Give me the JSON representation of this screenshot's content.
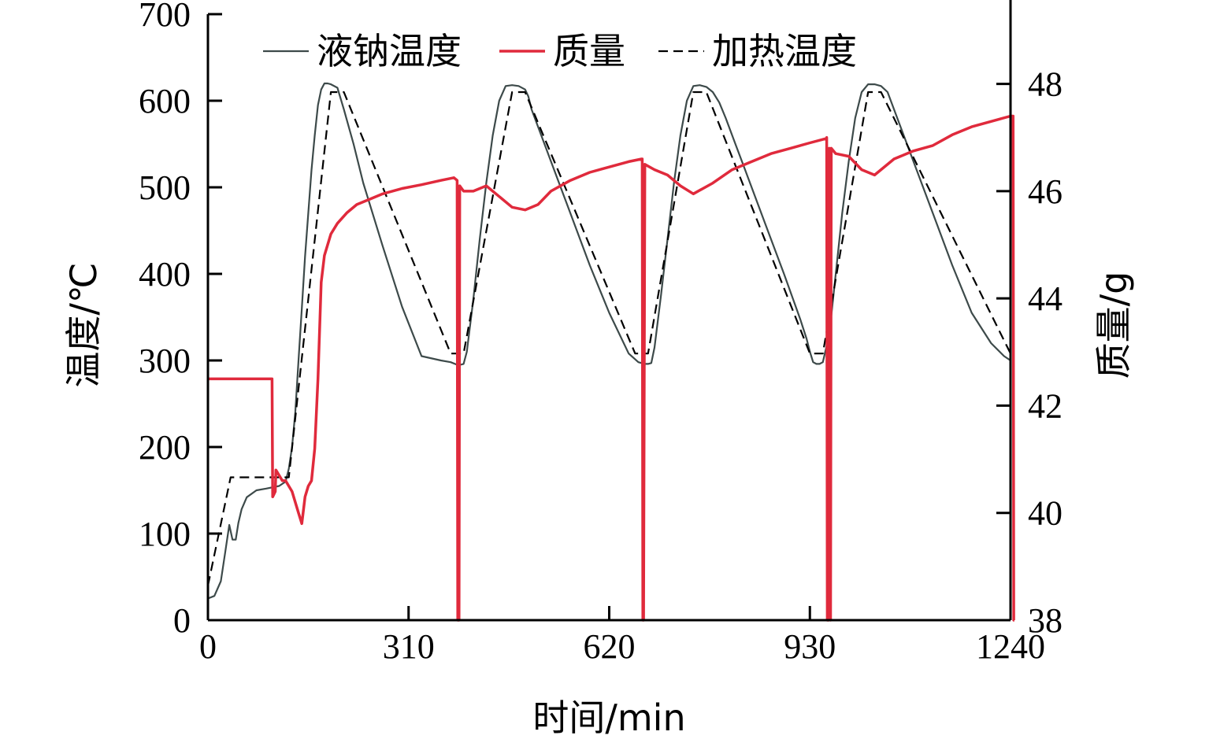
{
  "chart_data": {
    "type": "line",
    "xlabel": "时间/min",
    "ylabel_left": "温度/℃",
    "ylabel_right": "质量/g",
    "xlim": [
      0,
      1240
    ],
    "ylim_left": [
      0,
      700
    ],
    "ylim_right": [
      38,
      49.3
    ],
    "xticks": [
      0,
      310,
      620,
      930,
      1240
    ],
    "yticks_left": [
      0,
      100,
      200,
      300,
      400,
      500,
      600,
      700
    ],
    "yticks_right": [
      38,
      40,
      42,
      44,
      46,
      48
    ],
    "legend_position": "top",
    "grid": false,
    "series": [
      {
        "name": "液钠温度",
        "axis": "left",
        "color": "#3d4a4a",
        "style": "solid",
        "x": [
          0,
          10,
          20,
          27,
          33,
          38,
          43,
          47,
          52,
          60,
          75,
          90,
          110,
          120,
          125,
          130,
          135,
          140,
          145,
          150,
          155,
          160,
          165,
          170,
          175,
          180,
          185,
          190,
          200,
          210,
          225,
          240,
          270,
          300,
          330,
          360,
          375,
          385,
          390,
          395,
          400,
          410,
          420,
          430,
          440,
          450,
          460,
          470,
          480,
          490,
          495,
          500,
          515,
          530,
          560,
          590,
          620,
          650,
          665,
          675,
          680,
          685,
          690,
          700,
          710,
          720,
          730,
          740,
          750,
          760,
          770,
          780,
          790,
          800,
          815,
          830,
          860,
          890,
          915,
          925,
          930,
          935,
          940,
          945,
          950,
          960,
          970,
          980,
          990,
          1000,
          1010,
          1020,
          1030,
          1040,
          1050,
          1055,
          1060,
          1075,
          1090,
          1120,
          1150,
          1180,
          1210,
          1230,
          1240
        ],
        "y": [
          25,
          28,
          45,
          80,
          110,
          93,
          93,
          112,
          128,
          142,
          150,
          152,
          155,
          160,
          175,
          200,
          240,
          300,
          360,
          420,
          470,
          520,
          560,
          595,
          613,
          620,
          620,
          619,
          615,
          590,
          550,
          505,
          432,
          362,
          305,
          300,
          298,
          295,
          295,
          296,
          310,
          370,
          440,
          505,
          560,
          600,
          617,
          618,
          617,
          613,
          605,
          590,
          560,
          530,
          470,
          410,
          355,
          308,
          298,
          296,
          296,
          297,
          315,
          375,
          440,
          505,
          560,
          600,
          617,
          618,
          616,
          610,
          598,
          580,
          550,
          520,
          460,
          400,
          348,
          325,
          310,
          298,
          296,
          296,
          298,
          330,
          400,
          470,
          530,
          580,
          610,
          619,
          619,
          617,
          610,
          600,
          590,
          560,
          530,
          470,
          410,
          355,
          320,
          305,
          300
        ]
      },
      {
        "name": "质量",
        "axis": "right",
        "color": "#e02a3c",
        "style": "solid",
        "x": [
          0,
          99,
          100,
          104,
          105,
          110,
          115,
          120,
          125,
          130,
          135,
          140,
          145,
          150,
          155,
          160,
          165,
          170,
          175,
          180,
          185,
          190,
          200,
          215,
          230,
          250,
          270,
          300,
          330,
          360,
          380,
          385,
          386,
          388,
          389,
          395,
          410,
          430,
          450,
          470,
          490,
          510,
          530,
          560,
          590,
          620,
          650,
          670,
          671,
          672,
          673,
          675,
          690,
          710,
          730,
          750,
          780,
          810,
          840,
          870,
          900,
          930,
          955,
          956,
          957,
          959,
          960,
          962,
          963,
          970,
          990,
          1010,
          1030,
          1060,
          1090,
          1120,
          1150,
          1180,
          1210,
          1240,
          1244,
          1245,
          1246
        ],
        "y": [
          42.5,
          42.5,
          40.3,
          40.4,
          40.8,
          40.7,
          40.6,
          40.6,
          40.5,
          40.4,
          40.2,
          40.0,
          39.8,
          40.3,
          40.5,
          40.6,
          41.2,
          42.5,
          44.3,
          44.8,
          45.0,
          45.2,
          45.4,
          45.6,
          45.75,
          45.85,
          45.95,
          46.05,
          46.12,
          46.2,
          46.25,
          46.2,
          38.0,
          38.0,
          46.1,
          46.0,
          46.0,
          46.1,
          45.9,
          45.7,
          45.65,
          45.75,
          46.0,
          46.2,
          46.35,
          46.45,
          46.55,
          46.6,
          46.6,
          38.0,
          38.0,
          46.5,
          46.4,
          46.3,
          46.1,
          45.95,
          46.15,
          46.4,
          46.55,
          46.7,
          46.8,
          46.9,
          46.98,
          47.0,
          38.0,
          38.0,
          46.8,
          38.0,
          46.8,
          46.7,
          46.65,
          46.4,
          46.3,
          46.6,
          46.75,
          46.85,
          47.05,
          47.2,
          47.3,
          47.4,
          47.4,
          38.0,
          38.0
        ]
      },
      {
        "name": "加热温度",
        "axis": "left",
        "color": "#000000",
        "style": "dashed",
        "x": [
          0,
          35,
          125,
          190,
          210,
          375,
          395,
          470,
          490,
          660,
          680,
          750,
          770,
          930,
          950,
          1020,
          1040,
          1240
        ],
        "y": [
          40,
          165,
          165,
          610,
          610,
          308,
          308,
          610,
          610,
          308,
          308,
          610,
          610,
          308,
          308,
          610,
          610,
          308
        ]
      }
    ]
  }
}
